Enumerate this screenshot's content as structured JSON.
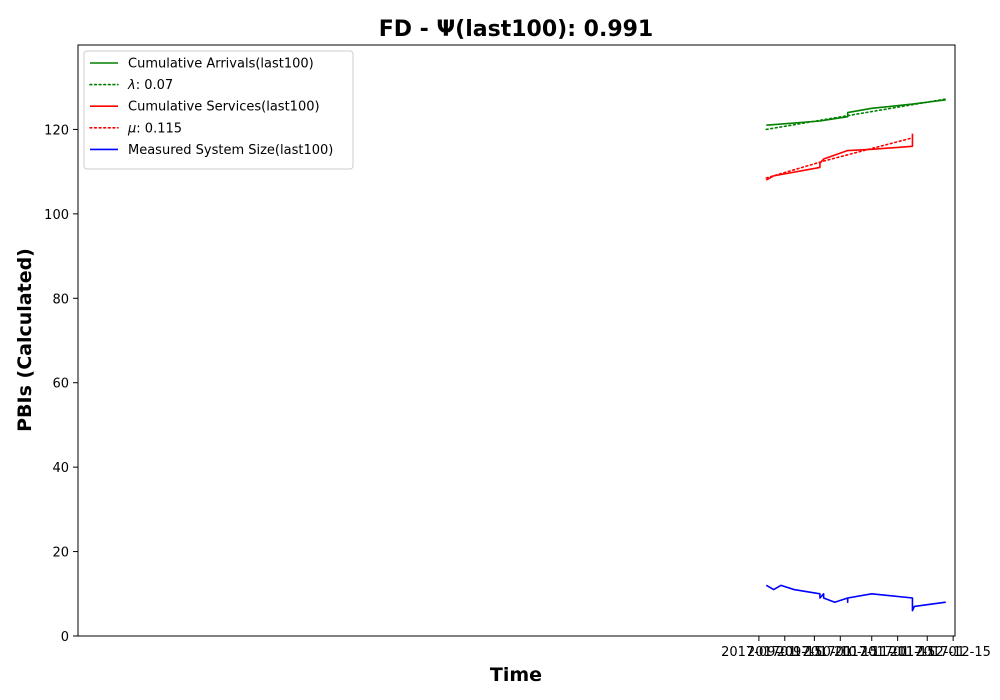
{
  "chart_data": {
    "type": "line",
    "title": "FD -  Ψ(last100): 0.991",
    "xlabel": "Time",
    "ylabel": "PBIs (Calculated)",
    "x_axis_type": "date",
    "xlim": [
      "2016-08-29",
      "2017-12-16"
    ],
    "ylim": [
      0,
      140
    ],
    "xticks": [
      "2017-09-01",
      "2017-09-15",
      "2017-10-01",
      "2017-10-15",
      "2017-11-01",
      "2017-11-15",
      "2017-12-01",
      "2017-12-15"
    ],
    "yticks": [
      0,
      20,
      40,
      60,
      80,
      100,
      120
    ],
    "grid": false,
    "legend_position": "top-left",
    "series": [
      {
        "name": "Cumulative Arrivals(last100)",
        "color": "#008000",
        "style": "solid",
        "points": [
          [
            "2017-09-05",
            121
          ],
          [
            "2017-10-04",
            122
          ],
          [
            "2017-10-19",
            123
          ],
          [
            "2017-10-19",
            124
          ],
          [
            "2017-11-01",
            125
          ],
          [
            "2017-11-23",
            126
          ],
          [
            "2017-12-11",
            127
          ]
        ]
      },
      {
        "name": "λ: 0.07",
        "label_prefix": "λ",
        "label_suffix": ": 0.07",
        "color": "#008000",
        "style": "dotted",
        "points": [
          [
            "2017-09-05",
            120
          ],
          [
            "2017-12-11",
            127.2
          ]
        ]
      },
      {
        "name": "Cumulative Services(last100)",
        "color": "#ff0000",
        "style": "solid",
        "points": [
          [
            "2017-09-05",
            108
          ],
          [
            "2017-09-09",
            109
          ],
          [
            "2017-10-04",
            111
          ],
          [
            "2017-10-04",
            112
          ],
          [
            "2017-10-06",
            113
          ],
          [
            "2017-10-19",
            115
          ],
          [
            "2017-11-01",
            115.3
          ],
          [
            "2017-11-23",
            116
          ],
          [
            "2017-11-23",
            119
          ]
        ]
      },
      {
        "name": "μ: 0.115",
        "label_prefix": "μ",
        "label_suffix": ": 0.115",
        "color": "#ff0000",
        "style": "dotted",
        "points": [
          [
            "2017-09-05",
            108.5
          ],
          [
            "2017-10-06",
            112.5
          ],
          [
            "2017-11-23",
            118
          ]
        ]
      },
      {
        "name": "Measured System Size(last100)",
        "color": "#0000ff",
        "style": "solid",
        "points": [
          [
            "2017-09-05",
            12
          ],
          [
            "2017-09-09",
            11
          ],
          [
            "2017-09-13",
            12
          ],
          [
            "2017-09-20",
            11
          ],
          [
            "2017-10-04",
            10
          ],
          [
            "2017-10-04",
            9
          ],
          [
            "2017-10-06",
            10
          ],
          [
            "2017-10-06",
            9
          ],
          [
            "2017-10-12",
            8
          ],
          [
            "2017-10-19",
            9
          ],
          [
            "2017-10-19",
            8
          ],
          [
            "2017-10-19",
            9
          ],
          [
            "2017-11-01",
            10
          ],
          [
            "2017-11-23",
            9
          ],
          [
            "2017-11-23",
            6
          ],
          [
            "2017-11-24",
            7
          ],
          [
            "2017-12-11",
            8
          ]
        ]
      }
    ]
  }
}
